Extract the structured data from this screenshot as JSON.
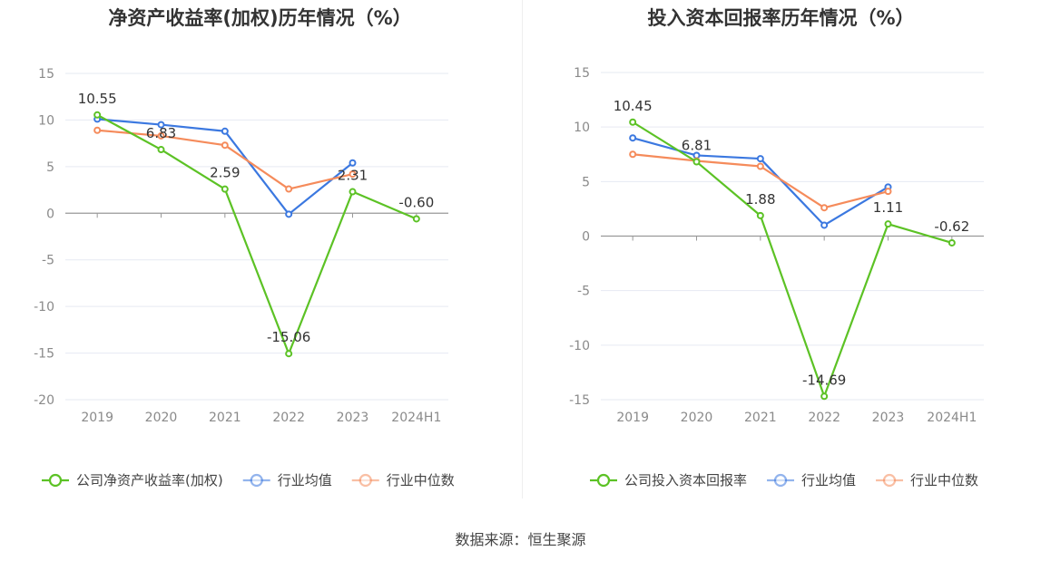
{
  "footer": {
    "source": "数据来源：恒生聚源"
  },
  "chart_data": [
    {
      "type": "line",
      "title": "净资产收益率(加权)历年情况（%）",
      "categories": [
        "2019",
        "2020",
        "2021",
        "2022",
        "2023",
        "2024H1"
      ],
      "ylim": [
        -20,
        15
      ],
      "yticks": [
        15,
        10,
        5,
        0,
        -5,
        -10,
        -15,
        -20
      ],
      "grid": true,
      "legend_position": "bottom",
      "series": [
        {
          "name": "公司净资产收益率(加权)",
          "color": "#5cc225",
          "values": [
            10.55,
            6.83,
            2.59,
            -15.06,
            2.31,
            -0.6
          ],
          "labels": [
            "10.55",
            "6.83",
            "2.59",
            "-15.06",
            "2.31",
            "-0.60"
          ]
        },
        {
          "name": "行业均值",
          "color": "#3b78e0",
          "values": [
            10.1,
            9.5,
            8.8,
            -0.1,
            5.4,
            null
          ]
        },
        {
          "name": "行业中位数",
          "color": "#f58b5b",
          "values": [
            8.9,
            8.3,
            7.3,
            2.6,
            4.2,
            null
          ]
        }
      ]
    },
    {
      "type": "line",
      "title": "投入资本回报率历年情况（%）",
      "categories": [
        "2019",
        "2020",
        "2021",
        "2022",
        "2023",
        "2024H1"
      ],
      "ylim": [
        -15,
        15
      ],
      "yticks": [
        15,
        10,
        5,
        0,
        -5,
        -10,
        -15
      ],
      "grid": true,
      "legend_position": "bottom",
      "series": [
        {
          "name": "公司投入资本回报率",
          "color": "#5cc225",
          "values": [
            10.45,
            6.81,
            1.88,
            -14.69,
            1.11,
            -0.62
          ],
          "labels": [
            "10.45",
            "6.81",
            "1.88",
            "-14.69",
            "1.11",
            "-0.62"
          ]
        },
        {
          "name": "行业均值",
          "color": "#3b78e0",
          "values": [
            9.0,
            7.4,
            7.1,
            1.0,
            4.5,
            null
          ]
        },
        {
          "name": "行业中位数",
          "color": "#f58b5b",
          "values": [
            7.5,
            6.9,
            6.4,
            2.6,
            4.1,
            null
          ]
        }
      ]
    }
  ]
}
